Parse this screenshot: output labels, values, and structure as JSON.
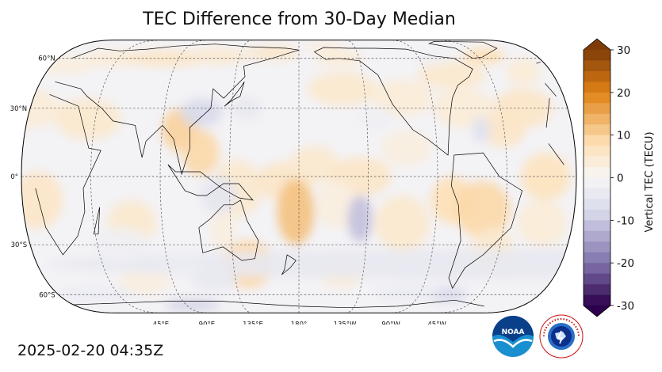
{
  "title": "TEC Difference from 30-Day Median",
  "timestamp": "2025-02-20 04:35Z",
  "colorbar": {
    "label": "Vertical TEC (TECU)",
    "ticks": [
      "30",
      "20",
      "10",
      "0",
      "-10",
      "-20",
      "-30"
    ],
    "min": -30,
    "max": 30,
    "colors": {
      "neg_max": "#2d004b",
      "neg_mid": "#8073ac",
      "neg_low": "#d8daeb",
      "zero": "#f7f7f7",
      "pos_low": "#fee0b6",
      "pos_mid": "#e08214",
      "pos_max": "#7f3b08"
    }
  },
  "map": {
    "projection": "Robinson",
    "central_longitude": 180,
    "lat_labels": [
      "60°N",
      "30°N",
      "0°",
      "30°S",
      "60°S"
    ],
    "lon_labels": [
      "45°E",
      "90°E",
      "135°E",
      "180°",
      "135°W",
      "90°W",
      "45°W"
    ]
  },
  "logos": {
    "noaa_text": "NOAA",
    "nws_text": "NATIONAL WEATHER SERVICE"
  }
}
